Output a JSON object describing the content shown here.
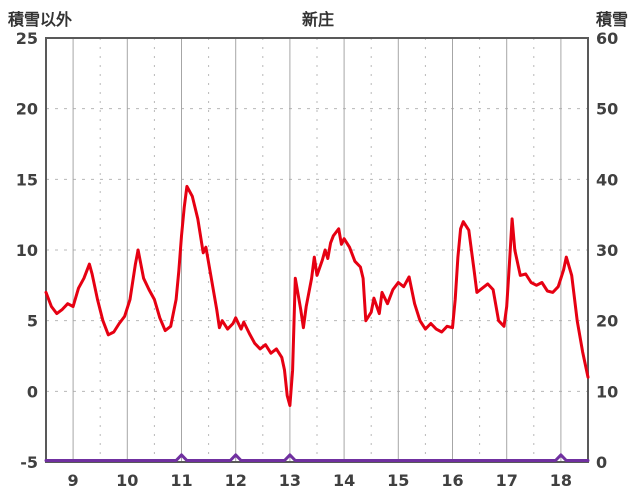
{
  "header": {
    "left_axis_title": "積雪以外",
    "title": "新庄",
    "right_axis_title": "積雪"
  },
  "chart_data": {
    "type": "line",
    "title": "新庄",
    "x_range": [
      8.5,
      18.5
    ],
    "x_ticks": [
      9,
      10,
      11,
      12,
      13,
      14,
      15,
      16,
      17,
      18
    ],
    "left_axis": {
      "label": "積雪以外",
      "range": [
        -5,
        25
      ],
      "ticks": [
        -5,
        0,
        5,
        10,
        15,
        20,
        25
      ]
    },
    "right_axis": {
      "label": "積雪",
      "range": [
        0,
        60
      ],
      "ticks": [
        0,
        10,
        20,
        30,
        40,
        50,
        60
      ]
    },
    "grid": {
      "major_color": "#a6a6a6",
      "dashed_color": "#b8b8b8",
      "frame_color": "#595959"
    },
    "series": [
      {
        "name": "積雪",
        "axis": "right",
        "color": "#7030a0",
        "width": 3,
        "x": [
          8.5,
          10.9,
          11.0,
          11.1,
          11.9,
          12.0,
          12.1,
          12.9,
          13.0,
          13.1,
          17.9,
          18.0,
          18.1,
          18.5
        ],
        "y": [
          0,
          0,
          1,
          0,
          0,
          1,
          0,
          0,
          1,
          0,
          0,
          1,
          0,
          0
        ]
      },
      {
        "name": "積雪以外",
        "axis": "left",
        "color": "#e60012",
        "width": 3,
        "x": [
          8.5,
          8.55,
          8.6,
          8.7,
          8.8,
          8.9,
          9.0,
          9.1,
          9.2,
          9.3,
          9.35,
          9.45,
          9.55,
          9.65,
          9.75,
          9.85,
          9.95,
          10.05,
          10.15,
          10.2,
          10.3,
          10.4,
          10.5,
          10.6,
          10.7,
          10.8,
          10.9,
          10.95,
          11.0,
          11.05,
          11.1,
          11.2,
          11.3,
          11.4,
          11.45,
          11.55,
          11.65,
          11.7,
          11.75,
          11.85,
          11.95,
          12.0,
          12.1,
          12.15,
          12.25,
          12.35,
          12.45,
          12.55,
          12.65,
          12.75,
          12.85,
          12.9,
          12.95,
          13.0,
          13.05,
          13.1,
          13.2,
          13.25,
          13.3,
          13.4,
          13.45,
          13.5,
          13.6,
          13.65,
          13.7,
          13.75,
          13.8,
          13.9,
          13.95,
          14.0,
          14.1,
          14.2,
          14.3,
          14.35,
          14.4,
          14.5,
          14.55,
          14.65,
          14.7,
          14.8,
          14.9,
          15.0,
          15.1,
          15.2,
          15.3,
          15.4,
          15.5,
          15.6,
          15.7,
          15.8,
          15.9,
          16.0,
          16.05,
          16.1,
          16.15,
          16.2,
          16.3,
          16.4,
          16.45,
          16.55,
          16.65,
          16.75,
          16.85,
          16.95,
          17.0,
          17.05,
          17.1,
          17.15,
          17.25,
          17.35,
          17.45,
          17.55,
          17.65,
          17.75,
          17.85,
          17.95,
          18.0,
          18.05,
          18.1,
          18.2,
          18.3,
          18.4,
          18.5
        ],
        "y": [
          7.0,
          6.5,
          6.0,
          5.5,
          5.8,
          6.2,
          6.0,
          7.3,
          8.0,
          9.0,
          8.3,
          6.5,
          5.0,
          4.0,
          4.2,
          4.8,
          5.3,
          6.5,
          9.0,
          10.0,
          8.0,
          7.2,
          6.5,
          5.2,
          4.3,
          4.6,
          6.5,
          8.5,
          11.0,
          13.0,
          14.5,
          13.8,
          12.2,
          9.8,
          10.2,
          8.0,
          5.8,
          4.5,
          5.0,
          4.4,
          4.8,
          5.2,
          4.4,
          4.9,
          4.1,
          3.4,
          3.0,
          3.3,
          2.7,
          3.0,
          2.4,
          1.5,
          -0.3,
          -1.0,
          1.5,
          8.0,
          5.8,
          4.5,
          6.0,
          8.0,
          9.5,
          8.2,
          9.3,
          10.0,
          9.4,
          10.5,
          11.0,
          11.5,
          10.4,
          10.8,
          10.2,
          9.2,
          8.8,
          8.0,
          5.0,
          5.6,
          6.6,
          5.5,
          7.0,
          6.2,
          7.2,
          7.7,
          7.4,
          8.1,
          6.2,
          5.0,
          4.4,
          4.8,
          4.4,
          4.2,
          4.6,
          4.5,
          6.5,
          9.5,
          11.5,
          12.0,
          11.4,
          8.5,
          7.0,
          7.3,
          7.6,
          7.2,
          5.0,
          4.6,
          6.0,
          9.0,
          12.2,
          10.0,
          8.2,
          8.3,
          7.7,
          7.5,
          7.7,
          7.1,
          7.0,
          7.4,
          8.0,
          8.6,
          9.5,
          8.2,
          5.0,
          2.8,
          1.0
        ]
      }
    ]
  }
}
